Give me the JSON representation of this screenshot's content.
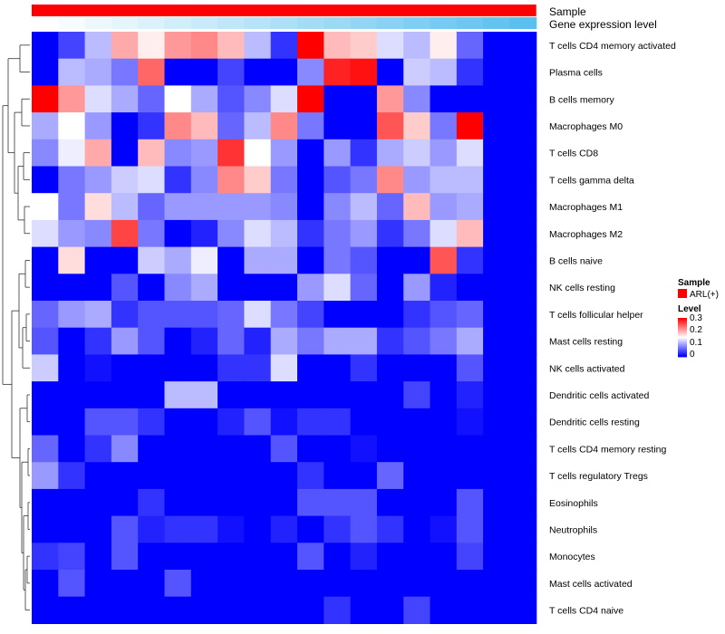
{
  "chart_data": {
    "type": "heatmap",
    "annotations": [
      {
        "name": "Sample",
        "color": "#ff0000"
      },
      {
        "name": "Gene expression level",
        "gradient": [
          "#ffffff",
          "#5bc0ef"
        ]
      }
    ],
    "rows": [
      "T cells CD4 memory activated",
      "Plasma cells",
      "B cells memory",
      "Macrophages M0",
      "T cells CD8",
      "T cells gamma delta",
      "Macrophages M1",
      "Macrophages M2",
      "B cells naive",
      "NK cells resting",
      "T cells follicular helper",
      "Mast cells resting",
      "NK cells activated",
      "Dendritic cells activated",
      "Dendritic cells resting",
      "T cells CD4 memory resting",
      "T cells regulatory  Tregs",
      "Eosinophils",
      "Neutrophils",
      "Monocytes",
      "Mast cells activated",
      "T cells CD4 naive"
    ],
    "n_columns": 19,
    "values": [
      [
        0.0,
        0.04,
        0.11,
        0.2,
        0.16,
        0.21,
        0.22,
        0.19,
        0.11,
        0.03,
        0.3,
        0.19,
        0.18,
        0.13,
        0.11,
        0.16,
        0.06,
        0,
        0
      ],
      [
        0.0,
        0.11,
        0.1,
        0.07,
        0.24,
        0.0,
        0.0,
        0.04,
        0.0,
        0.0,
        0.08,
        0.28,
        0.29,
        0.0,
        0.12,
        0.11,
        0.03,
        0,
        0
      ],
      [
        0.3,
        0.21,
        0.13,
        0.1,
        0.06,
        0.15,
        0.1,
        0.05,
        0.08,
        0.13,
        0.3,
        0.0,
        0.0,
        0.21,
        0.08,
        0.0,
        0.0,
        0,
        0
      ],
      [
        0.1,
        0.15,
        0.09,
        0.0,
        0.03,
        0.22,
        0.19,
        0.06,
        0.11,
        0.22,
        0.07,
        0.0,
        0.0,
        0.25,
        0.18,
        0.07,
        0.3,
        0,
        0
      ],
      [
        0.08,
        0.14,
        0.2,
        0.0,
        0.19,
        0.08,
        0.09,
        0.27,
        0.15,
        0.09,
        0.0,
        0.09,
        0.03,
        0.1,
        0.12,
        0.09,
        0.13,
        0,
        0
      ],
      [
        0.0,
        0.07,
        0.09,
        0.12,
        0.13,
        0.03,
        0.08,
        0.22,
        0.18,
        0.07,
        0.0,
        0.05,
        0.07,
        0.22,
        0.09,
        0.11,
        0.11,
        0,
        0
      ],
      [
        0.15,
        0.07,
        0.17,
        0.11,
        0.06,
        0.09,
        0.09,
        0.09,
        0.09,
        0.08,
        0.0,
        0.08,
        0.11,
        0.06,
        0.19,
        0.09,
        0.1,
        0,
        0
      ],
      [
        0.13,
        0.09,
        0.08,
        0.26,
        0.07,
        0.0,
        0.02,
        0.08,
        0.13,
        0.11,
        0.03,
        0.07,
        0.09,
        0.03,
        0.07,
        0.13,
        0.19,
        0,
        0
      ],
      [
        0.0,
        0.17,
        0.0,
        0.0,
        0.12,
        0.1,
        0.14,
        0.0,
        0.1,
        0.1,
        0.0,
        0.07,
        0.05,
        0.0,
        0.0,
        0.25,
        0.03,
        0,
        0
      ],
      [
        0.0,
        0.0,
        0.0,
        0.05,
        0.0,
        0.08,
        0.1,
        0.0,
        0.0,
        0.0,
        0.09,
        0.13,
        0.06,
        0.0,
        0.09,
        0.02,
        0.0,
        0,
        0
      ],
      [
        0.06,
        0.09,
        0.1,
        0.03,
        0.05,
        0.05,
        0.05,
        0.06,
        0.13,
        0.07,
        0.04,
        0.0,
        0.0,
        0.0,
        0.03,
        0.05,
        0.06,
        0,
        0
      ],
      [
        0.05,
        0.0,
        0.03,
        0.09,
        0.05,
        0.0,
        0.02,
        0.06,
        0.02,
        0.1,
        0.07,
        0.1,
        0.1,
        0.03,
        0.05,
        0.07,
        0.1,
        0,
        0
      ],
      [
        0.12,
        0.0,
        0.01,
        0.0,
        0.0,
        0.0,
        0.0,
        0.03,
        0.03,
        0.13,
        0.0,
        0.0,
        0.03,
        0.0,
        0.0,
        0.0,
        0.05,
        0,
        0
      ],
      [
        0.0,
        0.0,
        0.0,
        0.0,
        0.0,
        0.11,
        0.11,
        0.0,
        0.0,
        0.0,
        0.0,
        0.0,
        0.0,
        0.0,
        0.04,
        0.0,
        0.02,
        0,
        0
      ],
      [
        0.0,
        0.0,
        0.05,
        0.05,
        0.03,
        0.0,
        0.0,
        0.02,
        0.05,
        0.01,
        0.03,
        0.03,
        0.0,
        0.0,
        0.0,
        0.0,
        0.01,
        0,
        0
      ],
      [
        0.06,
        0.0,
        0.03,
        0.08,
        0.0,
        0.0,
        0.0,
        0.0,
        0.0,
        0.05,
        0.0,
        0.0,
        0.01,
        0.0,
        0.0,
        0.0,
        0.0,
        0,
        0
      ],
      [
        0.09,
        0.03,
        0.0,
        0.0,
        0.0,
        0.0,
        0.0,
        0.0,
        0.0,
        0.0,
        0.03,
        0.0,
        0.0,
        0.06,
        0.0,
        0.0,
        0.0,
        0,
        0
      ],
      [
        0.0,
        0.0,
        0.0,
        0.0,
        0.03,
        0.0,
        0.0,
        0.0,
        0.0,
        0.0,
        0.05,
        0.05,
        0.05,
        0.0,
        0.0,
        0.0,
        0.05,
        0,
        0
      ],
      [
        0.0,
        0.0,
        0.0,
        0.05,
        0.02,
        0.03,
        0.03,
        0.01,
        0.0,
        0.02,
        0.0,
        0.03,
        0.05,
        0.03,
        0.0,
        0.01,
        0.05,
        0,
        0
      ],
      [
        0.03,
        0.04,
        0.0,
        0.05,
        0.0,
        0.0,
        0.0,
        0.0,
        0.0,
        0.0,
        0.05,
        0.0,
        0.02,
        0.0,
        0.0,
        0.0,
        0.04,
        0,
        0
      ],
      [
        0.0,
        0.05,
        0.0,
        0.0,
        0.0,
        0.05,
        0.0,
        0.0,
        0.0,
        0.0,
        0.0,
        0.0,
        0.0,
        0.0,
        0.0,
        0.0,
        0.0,
        0,
        0
      ],
      [
        0.0,
        0.0,
        0.0,
        0.0,
        0.0,
        0.0,
        0.0,
        0.0,
        0.0,
        0.0,
        0.0,
        0.03,
        0.0,
        0.0,
        0.04,
        0.0,
        0.0,
        0,
        0
      ]
    ],
    "value_range": [
      0,
      0.3
    ],
    "colorscale": {
      "low": "#0000ff",
      "mid": "#ffffff",
      "high": "#ff0000"
    },
    "legend": {
      "placement": "right",
      "sample_title": "Sample",
      "sample_item": "ARL(+)",
      "level_title": "Level",
      "ticks": [
        "0.3",
        "0.2",
        "0.1",
        "0"
      ]
    },
    "row_dendrogram": true
  }
}
